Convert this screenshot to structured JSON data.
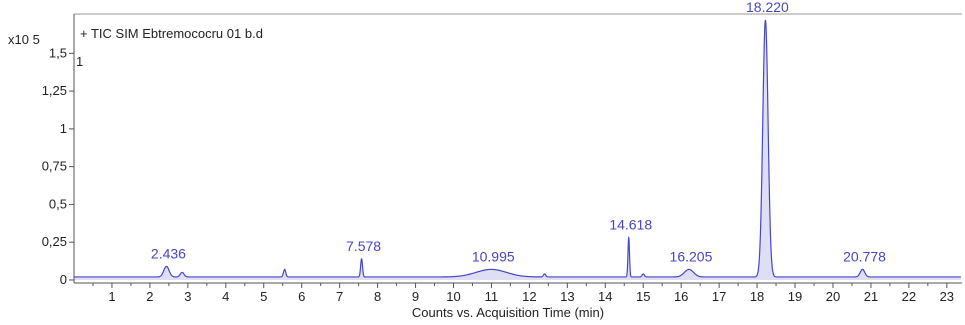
{
  "chart_data": {
    "type": "line",
    "title": "+ TIC SIM Ebtremococru 01 b.d",
    "scale_label": "x10 5",
    "y_top_marker": "1",
    "xlabel": "Counts vs. Acquisition Time (min)",
    "ylabel": "",
    "xlim": [
      0,
      23.4
    ],
    "ylim": [
      -0.02,
      1.76
    ],
    "x_ticks": [
      1,
      2,
      3,
      4,
      5,
      6,
      7,
      8,
      9,
      10,
      11,
      12,
      13,
      14,
      15,
      16,
      17,
      18,
      19,
      20,
      21,
      22,
      23
    ],
    "y_ticks": [
      {
        "value": 0,
        "label": "0"
      },
      {
        "value": 0.25,
        "label": "0,25"
      },
      {
        "value": 0.5,
        "label": "0,5"
      },
      {
        "value": 0.75,
        "label": "0,75"
      },
      {
        "value": 1,
        "label": "1"
      },
      {
        "value": 1.25,
        "label": "1,25"
      },
      {
        "value": 1.5,
        "label": "1,5"
      }
    ],
    "grid": false,
    "line_color": "#4646c8",
    "baseline": 0.02,
    "peaks": [
      {
        "rt": 2.436,
        "label": "2.436",
        "height": 0.07,
        "width": 0.07
      },
      {
        "rt": 2.85,
        "height": 0.03,
        "width": 0.05
      },
      {
        "rt": 5.55,
        "height": 0.05,
        "width": 0.03
      },
      {
        "rt": 7.578,
        "label": "7.578",
        "height": 0.12,
        "width": 0.025
      },
      {
        "rt": 10.995,
        "label": "10.995",
        "height": 0.05,
        "width": 0.4
      },
      {
        "rt": 12.4,
        "height": 0.02,
        "width": 0.03
      },
      {
        "rt": 14.618,
        "label": "14.618",
        "height": 0.26,
        "width": 0.02
      },
      {
        "rt": 15.0,
        "height": 0.02,
        "width": 0.03
      },
      {
        "rt": 16.205,
        "label": "16.205",
        "height": 0.05,
        "width": 0.12
      },
      {
        "rt": 18.22,
        "label": "18.220",
        "height": 1.7,
        "width": 0.07
      },
      {
        "rt": 20.778,
        "label": "20.778",
        "height": 0.05,
        "width": 0.06
      }
    ]
  }
}
